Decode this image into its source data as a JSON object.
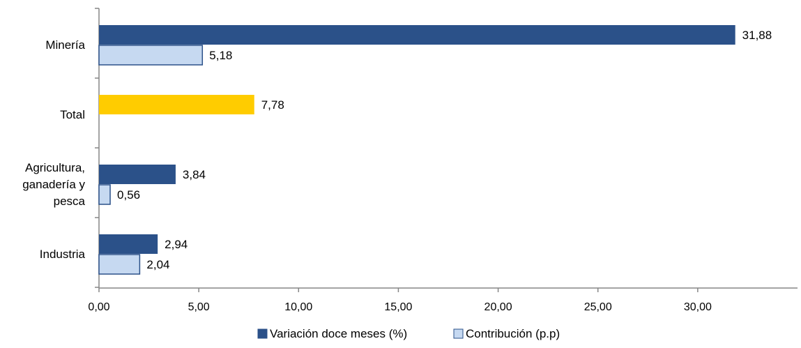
{
  "chart_data": {
    "type": "bar",
    "orientation": "horizontal",
    "categories": [
      "Minería",
      "Total",
      "Agricultura, ganadería y pesca",
      "Industria"
    ],
    "category_lines": [
      [
        "Minería"
      ],
      [
        "Total"
      ],
      [
        "Agricultura,",
        "ganadería y",
        "pesca"
      ],
      [
        "Industria"
      ]
    ],
    "series": [
      {
        "name": "Variación doce meses (%)",
        "color": "#2B5189",
        "values": [
          31.88,
          null,
          3.84,
          2.94
        ],
        "labels": [
          "31,88",
          "",
          "3,84",
          "2,94"
        ]
      },
      {
        "name": "Contribución (p.p)",
        "color": "#C6D9F1",
        "border": "#2B5189",
        "values": [
          5.18,
          null,
          0.56,
          2.04
        ],
        "labels": [
          "5,18",
          "",
          "0,56",
          "2,04"
        ]
      }
    ],
    "total": {
      "category": "Total",
      "value": 7.78,
      "label": "7,78",
      "color": "#FFCC00"
    },
    "xlim": [
      0,
      35
    ],
    "ticks": [
      0,
      5,
      10,
      15,
      20,
      25,
      30
    ],
    "tick_labels": [
      "0,00",
      "5,00",
      "10,00",
      "15,00",
      "20,00",
      "25,00",
      "30,00"
    ],
    "title": "",
    "xlabel": "",
    "ylabel": "",
    "grid": false,
    "legend_position": "bottom"
  }
}
